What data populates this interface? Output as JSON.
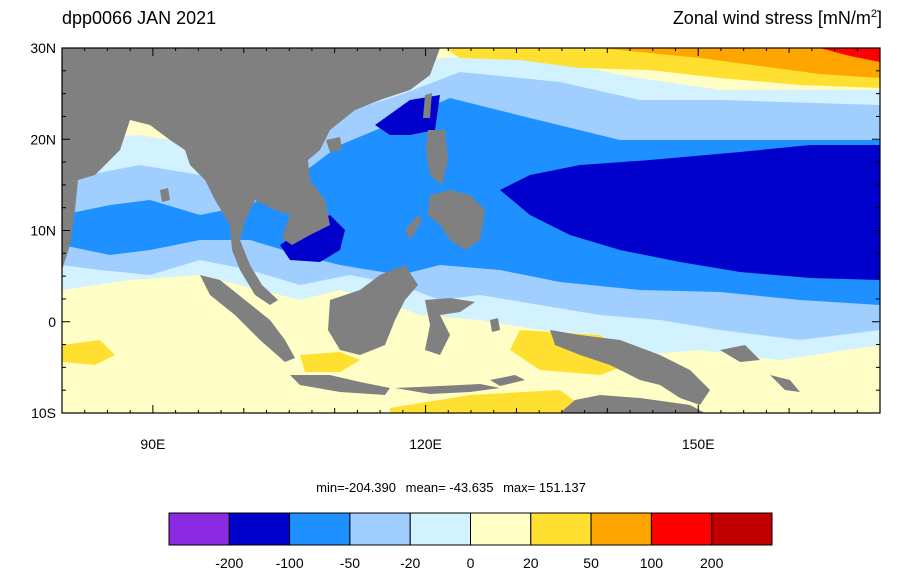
{
  "header": {
    "title": "dpp0066 JAN 2021",
    "variable": "Zonal wind stress [mN/m",
    "unit_sup": "2",
    "unit_close": "]"
  },
  "map": {
    "lat_labels": [
      "30N",
      "20N",
      "10N",
      "0",
      "10S"
    ],
    "lon_labels": [
      "90E",
      "120E",
      "150E"
    ],
    "land_color": "#808080",
    "ocean_bg": "#fffec6"
  },
  "stats": {
    "min": "min=-204.390",
    "mean": "mean= -43.635",
    "max": "max= 151.137"
  },
  "colorbar": {
    "colors": [
      "#8a2be2",
      "#0000cd",
      "#1e90ff",
      "#a0cfff",
      "#d2f2ff",
      "#ffffc6",
      "#ffe030",
      "#ffa500",
      "#ff0000",
      "#c00000"
    ],
    "labels": [
      "-200",
      "-100",
      "-50",
      "-20",
      "0",
      "20",
      "50",
      "100",
      "200"
    ]
  }
}
